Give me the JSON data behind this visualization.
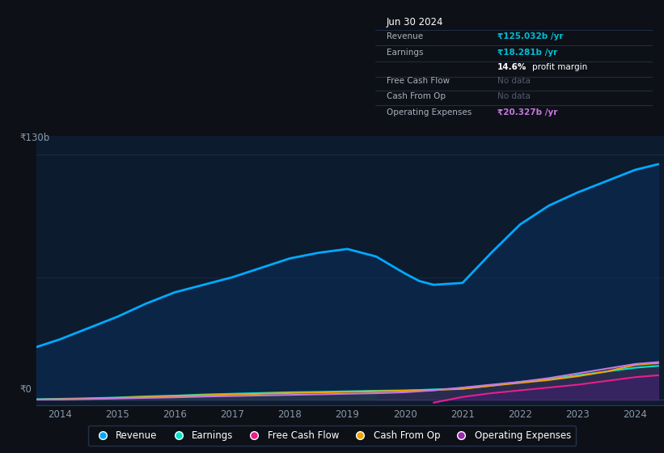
{
  "bg_color": "#0d1117",
  "plot_bg_color": "#0d1b2e",
  "grid_color": "#1e3a5f",
  "ytick_label": "₹130b",
  "y0_label": "₹0",
  "legend": [
    {
      "label": "Revenue",
      "color": "#00aaff"
    },
    {
      "label": "Earnings",
      "color": "#00e5cc"
    },
    {
      "label": "Free Cash Flow",
      "color": "#e91e8c"
    },
    {
      "label": "Cash From Op",
      "color": "#f0a500"
    },
    {
      "label": "Operating Expenses",
      "color": "#9c27b0"
    }
  ],
  "x_years": [
    2013.6,
    2014.0,
    2014.5,
    2015.0,
    2015.5,
    2016.0,
    2016.5,
    2017.0,
    2017.5,
    2018.0,
    2018.5,
    2019.0,
    2019.5,
    2020.0,
    2020.25,
    2020.5,
    2021.0,
    2021.5,
    2022.0,
    2022.5,
    2023.0,
    2023.5,
    2024.0,
    2024.4
  ],
  "revenue": [
    28,
    32,
    38,
    44,
    51,
    57,
    61,
    65,
    70,
    75,
    78,
    80,
    76,
    67,
    63,
    61,
    62,
    78,
    93,
    103,
    110,
    116,
    122,
    125
  ],
  "earnings": [
    0.3,
    0.5,
    0.8,
    1.2,
    1.8,
    2.2,
    2.8,
    3.2,
    3.6,
    4.0,
    4.2,
    4.5,
    4.8,
    5.0,
    5.2,
    5.5,
    6.0,
    7.5,
    9.5,
    11.0,
    13.0,
    15.0,
    17.0,
    18.0
  ],
  "free_cash_flow": [
    null,
    null,
    null,
    null,
    null,
    null,
    null,
    null,
    null,
    null,
    null,
    null,
    null,
    null,
    null,
    -1.5,
    1.5,
    3.5,
    5.0,
    6.5,
    8.0,
    10.0,
    12.0,
    13.0
  ],
  "cash_from_op": [
    0.1,
    0.3,
    0.6,
    1.0,
    1.5,
    2.0,
    2.4,
    2.8,
    3.2,
    3.6,
    3.9,
    4.2,
    4.5,
    4.8,
    5.0,
    5.2,
    5.8,
    7.5,
    9.0,
    10.5,
    12.5,
    15.0,
    18.5,
    19.5
  ],
  "op_expenses": [
    0.1,
    0.2,
    0.4,
    0.7,
    1.0,
    1.3,
    1.7,
    2.0,
    2.3,
    2.6,
    2.9,
    3.2,
    3.5,
    4.0,
    4.5,
    5.0,
    6.5,
    8.0,
    9.5,
    11.5,
    14.0,
    16.5,
    19.0,
    20.0
  ],
  "xlim": [
    2013.6,
    2024.5
  ],
  "ylim": [
    -3,
    140
  ],
  "xticks": [
    2014,
    2015,
    2016,
    2017,
    2018,
    2019,
    2020,
    2021,
    2022,
    2023,
    2024
  ],
  "infobox": {
    "date": "Jun 30 2024",
    "rows": [
      {
        "label": "Revenue",
        "value": "₹125.032b /yr",
        "vcolor": "#00bcd4",
        "bold": true,
        "dimmed": false
      },
      {
        "label": "Earnings",
        "value": "₹18.281b /yr",
        "vcolor": "#00bcd4",
        "bold": true,
        "dimmed": false
      },
      {
        "label": "",
        "value": "14.6% profit margin",
        "vcolor": "#ffffff",
        "bold": false,
        "dimmed": false
      },
      {
        "label": "Free Cash Flow",
        "value": "No data",
        "vcolor": "#555a6e",
        "bold": false,
        "dimmed": true
      },
      {
        "label": "Cash From Op",
        "value": "No data",
        "vcolor": "#555a6e",
        "bold": false,
        "dimmed": true
      },
      {
        "label": "Operating Expenses",
        "value": "₹20.327b /yr",
        "vcolor": "#c678dd",
        "bold": true,
        "dimmed": false
      }
    ]
  }
}
